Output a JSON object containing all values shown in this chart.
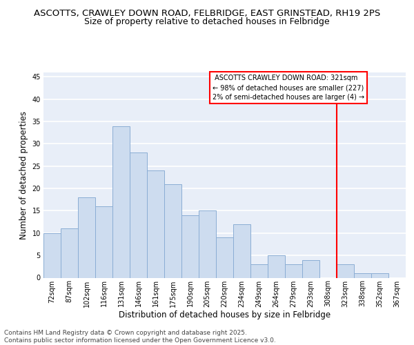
{
  "title_line1": "ASCOTTS, CRAWLEY DOWN ROAD, FELBRIDGE, EAST GRINSTEAD, RH19 2PS",
  "title_line2": "Size of property relative to detached houses in Felbridge",
  "xlabel": "Distribution of detached houses by size in Felbridge",
  "ylabel": "Number of detached properties",
  "categories": [
    "72sqm",
    "87sqm",
    "102sqm",
    "116sqm",
    "131sqm",
    "146sqm",
    "161sqm",
    "175sqm",
    "190sqm",
    "205sqm",
    "220sqm",
    "234sqm",
    "249sqm",
    "264sqm",
    "279sqm",
    "293sqm",
    "308sqm",
    "323sqm",
    "338sqm",
    "352sqm",
    "367sqm"
  ],
  "values": [
    10,
    11,
    18,
    16,
    34,
    28,
    24,
    21,
    14,
    15,
    9,
    12,
    3,
    5,
    3,
    4,
    0,
    3,
    1,
    1,
    0
  ],
  "bar_color": "#cddcef",
  "bar_edge_color": "#8aadd4",
  "background_color": "#e8eef8",
  "grid_color": "#ffffff",
  "vline_color": "red",
  "annotation_text": " ASCOTTS CRAWLEY DOWN ROAD: 321sqm\n← 98% of detached houses are smaller (227)\n2% of semi-detached houses are larger (4) →",
  "ylim": [
    0,
    46
  ],
  "footer_text": "Contains HM Land Registry data © Crown copyright and database right 2025.\nContains public sector information licensed under the Open Government Licence v3.0.",
  "title_fontsize": 9.5,
  "subtitle_fontsize": 9,
  "axis_label_fontsize": 8.5,
  "tick_fontsize": 7,
  "annotation_fontsize": 7,
  "footer_fontsize": 6.5
}
